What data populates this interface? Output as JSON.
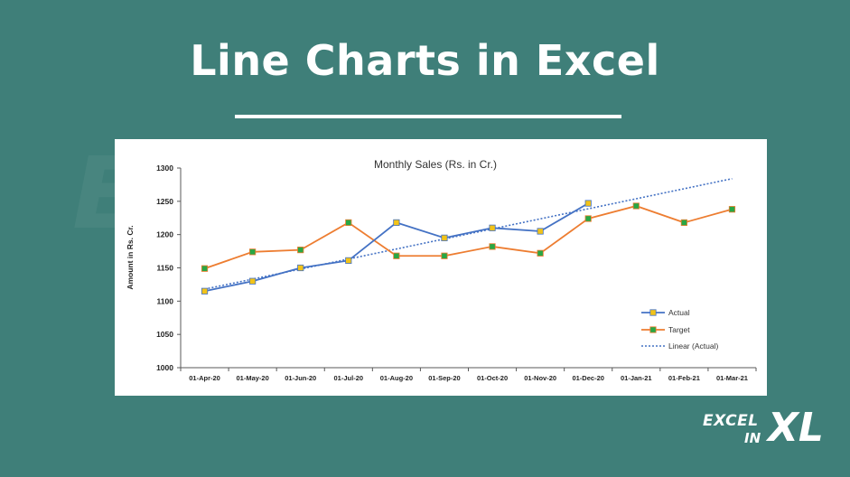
{
  "banner": {
    "title": "Line Charts in Excel",
    "logo_excel": "EXCEL",
    "logo_in": "IN",
    "logo_xl": "XL"
  },
  "chart_data": {
    "type": "line",
    "title": "Monthly Sales (Rs. in Cr.)",
    "xlabel": "",
    "ylabel": "Amount in Rs. Cr.",
    "ylim": [
      1000,
      1300
    ],
    "yticks": [
      1000,
      1050,
      1100,
      1150,
      1200,
      1250,
      1300
    ],
    "grid": false,
    "legend_position": "bottom-right",
    "categories": [
      "01-Apr-20",
      "01-May-20",
      "01-Jun-20",
      "01-Jul-20",
      "01-Aug-20",
      "01-Sep-20",
      "01-Oct-20",
      "01-Nov-20",
      "01-Dec-20",
      "01-Jan-21",
      "01-Feb-21",
      "01-Mar-21"
    ],
    "series": [
      {
        "name": "Actual",
        "color": "#4472c4",
        "marker_color": "#f2c318",
        "values": [
          1115,
          1130,
          1150,
          1161,
          1218,
          1195,
          1210,
          1205,
          1247,
          null,
          null,
          null
        ]
      },
      {
        "name": "Target",
        "color": "#ed7d31",
        "marker_color": "#28a745",
        "values": [
          1149,
          1174,
          1177,
          1218,
          1168,
          1168,
          1182,
          1172,
          1224,
          1243,
          1218,
          1238
        ]
      }
    ],
    "trendline": {
      "name": "Linear (Actual)",
      "color": "#4472c4",
      "start": [
        0,
        1118
      ],
      "end": [
        11,
        1284
      ]
    }
  }
}
